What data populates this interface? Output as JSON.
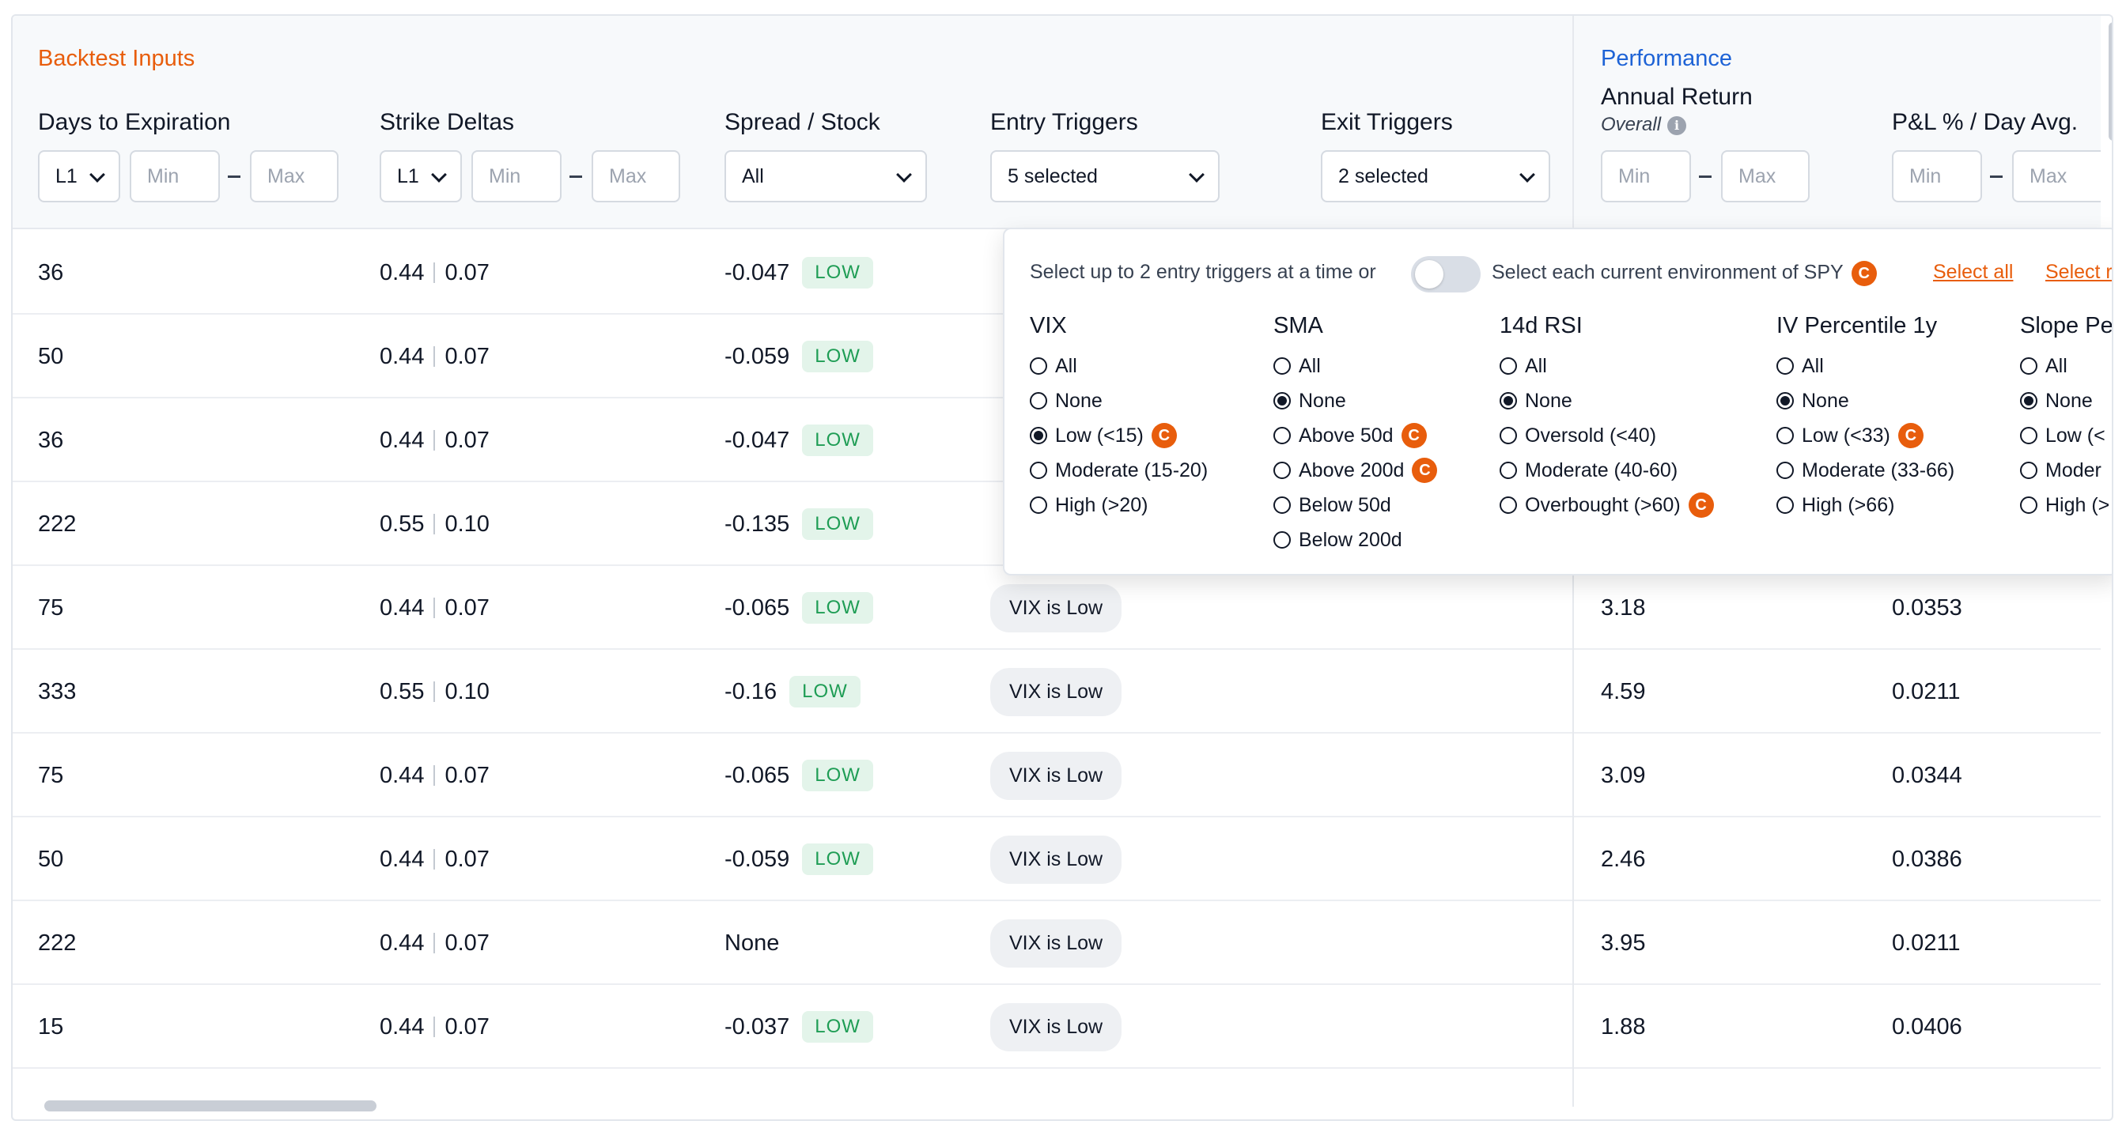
{
  "header": {
    "inputs_title": "Backtest Inputs",
    "performance_title": "Performance",
    "columns": {
      "dte": "Days to Expiration",
      "strike": "Strike Deltas",
      "spread": "Spread / Stock",
      "entry": "Entry Triggers",
      "exit": "Exit Triggers",
      "annual": "Annual Return",
      "annual_sub": "Overall",
      "pnl": "P&L % / Day Avg."
    },
    "filters": {
      "leg_select": "L1",
      "min_placeholder": "Min",
      "max_placeholder": "Max",
      "spread_value": "All",
      "entry_value": "5 selected",
      "exit_value": "2 selected"
    }
  },
  "dropdown": {
    "intro": "Select up to 2 entry triggers at a time or",
    "env_label": "Select each current environment of SPY",
    "select_all": "Select all",
    "select_more": "Select r",
    "groups": [
      {
        "title": "VIX",
        "options": [
          "All",
          "None",
          "Low (<15)",
          "Moderate (15-20)",
          "High (>20)"
        ],
        "selected": 2,
        "badge": 2
      },
      {
        "title": "SMA",
        "options": [
          "All",
          "None",
          "Above 50d",
          "Above 200d",
          "Below 50d",
          "Below 200d"
        ],
        "selected": 1,
        "badges": [
          2,
          3
        ]
      },
      {
        "title": "14d RSI",
        "options": [
          "All",
          "None",
          "Oversold (<40)",
          "Moderate (40-60)",
          "Overbought (>60)"
        ],
        "selected": 1,
        "badge": 4
      },
      {
        "title": "IV Percentile 1y",
        "options": [
          "All",
          "None",
          "Low (<33)",
          "Moderate (33-66)",
          "High (>66)"
        ],
        "selected": 1,
        "badge": 2
      },
      {
        "title": "Slope Pe",
        "options": [
          "All",
          "None",
          "Low (<",
          "Moder",
          "High (>"
        ],
        "selected": 1
      }
    ]
  },
  "rows": [
    {
      "dte": "36",
      "d1": "0.44",
      "d2": "0.07",
      "spread": "-0.047",
      "level": "LOW",
      "entry": "",
      "annual": "",
      "pnl": ""
    },
    {
      "dte": "50",
      "d1": "0.44",
      "d2": "0.07",
      "spread": "-0.059",
      "level": "LOW",
      "entry": "",
      "annual": "",
      "pnl": ""
    },
    {
      "dte": "36",
      "d1": "0.44",
      "d2": "0.07",
      "spread": "-0.047",
      "level": "LOW",
      "entry": "",
      "annual": "",
      "pnl": ""
    },
    {
      "dte": "222",
      "d1": "0.55",
      "d2": "0.10",
      "spread": "-0.135",
      "level": "LOW",
      "entry": "",
      "annual": "",
      "pnl": ""
    },
    {
      "dte": "75",
      "d1": "0.44",
      "d2": "0.07",
      "spread": "-0.065",
      "level": "LOW",
      "entry": "VIX is Low",
      "annual": "3.18",
      "pnl": "0.0353"
    },
    {
      "dte": "333",
      "d1": "0.55",
      "d2": "0.10",
      "spread": "-0.16",
      "level": "LOW",
      "entry": "VIX is Low",
      "annual": "4.59",
      "pnl": "0.0211"
    },
    {
      "dte": "75",
      "d1": "0.44",
      "d2": "0.07",
      "spread": "-0.065",
      "level": "LOW",
      "entry": "VIX is Low",
      "annual": "3.09",
      "pnl": "0.0344"
    },
    {
      "dte": "50",
      "d1": "0.44",
      "d2": "0.07",
      "spread": "-0.059",
      "level": "LOW",
      "entry": "VIX is Low",
      "annual": "2.46",
      "pnl": "0.0386"
    },
    {
      "dte": "222",
      "d1": "0.44",
      "d2": "0.07",
      "spread": "None",
      "level": "",
      "entry": "VIX is Low",
      "annual": "3.95",
      "pnl": "0.0211"
    },
    {
      "dte": "15",
      "d1": "0.44",
      "d2": "0.07",
      "spread": "-0.037",
      "level": "LOW",
      "entry": "VIX is Low",
      "annual": "1.88",
      "pnl": "0.0406"
    }
  ],
  "icons": {
    "info": "info-icon",
    "chevron": "chevron-down-icon",
    "badge": "c-badge-icon"
  },
  "colors": {
    "accent_orange": "#e85d0c",
    "performance_blue": "#1e63d6",
    "low_green": "#1f9d55"
  }
}
